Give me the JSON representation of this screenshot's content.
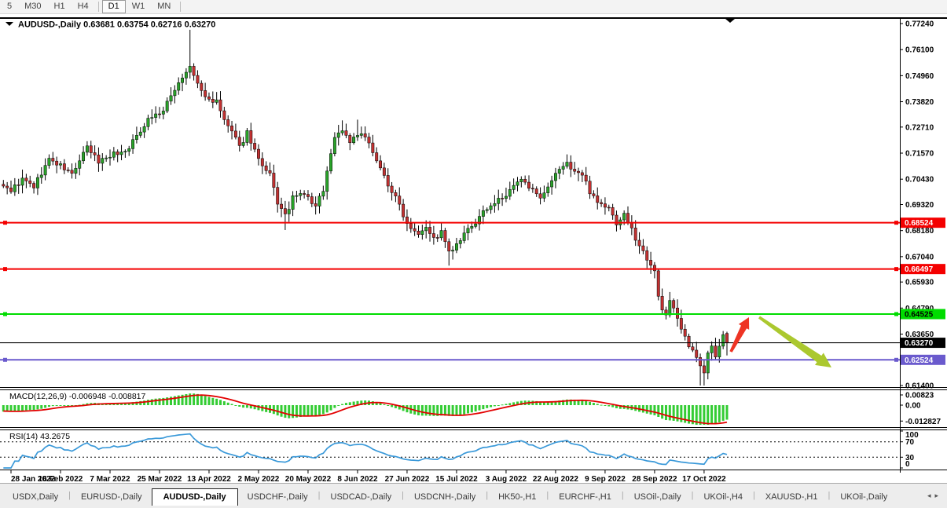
{
  "toolbar": {
    "items": [
      {
        "label": "5"
      },
      {
        "label": "M30"
      },
      {
        "label": "H1"
      },
      {
        "label": "H4"
      },
      {
        "sep": true
      },
      {
        "label": "D1",
        "active": true
      },
      {
        "label": "W1"
      },
      {
        "label": "MN"
      },
      {
        "sep": true
      }
    ]
  },
  "chart_data": {
    "type": "candlestick",
    "symbol": "AUDUSD-,Daily",
    "title": "AUDUSD-,Daily  0.63681 0.63754 0.62716 0.63270",
    "ohlc": {
      "open": "0.63681",
      "high": "0.63754",
      "low": "0.62716",
      "close": "0.63270"
    },
    "last_candle": {
      "o": 0.63681,
      "h": 0.63754,
      "l": 0.62716,
      "c": 0.6327
    },
    "bars": 189,
    "bars_per_label": 13,
    "x_labels": [
      "28 Jan 2022",
      "16 Feb 2022",
      "7 Mar 2022",
      "25 Mar 2022",
      "13 Apr 2022",
      "2 May 2022",
      "20 May 2022",
      "8 Jun 2022",
      "27 Jun 2022",
      "15 Jul 2022",
      "3 Aug 2022",
      "22 Aug 2022",
      "9 Sep 2022",
      "28 Sep 2022",
      "17 Oct 2022"
    ],
    "y_ticks": [
      "0.77240",
      "0.76100",
      "0.74960",
      "0.73820",
      "0.72710",
      "0.71570",
      "0.70430",
      "0.69320",
      "0.68180",
      "0.67040",
      "0.65930",
      "0.64790",
      "0.63650",
      "0.61400"
    ],
    "y_range": {
      "top": 0.7724,
      "bottom": 0.614
    },
    "close_anchors": [
      [
        -30,
        0.727
      ],
      [
        -20,
        0.718
      ],
      [
        -10,
        0.7075
      ],
      [
        -1,
        0.7005
      ],
      [
        0,
        0.6995
      ],
      [
        3,
        0.704
      ],
      [
        6,
        0.701
      ],
      [
        10,
        0.713
      ],
      [
        13,
        0.71
      ],
      [
        16,
        0.7065
      ],
      [
        20,
        0.718
      ],
      [
        23,
        0.712
      ],
      [
        26,
        0.715
      ],
      [
        30,
        0.7165
      ],
      [
        33,
        0.723
      ],
      [
        36,
        0.731
      ],
      [
        40,
        0.734
      ],
      [
        43,
        0.744
      ],
      [
        45,
        0.749
      ],
      [
        47,
        0.753
      ],
      [
        49,
        0.746
      ],
      [
        51,
        0.74
      ],
      [
        54,
        0.738
      ],
      [
        56,
        0.73
      ],
      [
        58,
        0.725
      ],
      [
        60,
        0.718
      ],
      [
        62,
        0.725
      ],
      [
        64,
        0.717
      ],
      [
        66,
        0.709
      ],
      [
        68,
        0.706
      ],
      [
        70,
        0.694
      ],
      [
        72,
        0.688
      ],
      [
        74,
        0.696
      ],
      [
        77,
        0.698
      ],
      [
        80,
        0.692
      ],
      [
        82,
        0.7
      ],
      [
        85,
        0.723
      ],
      [
        87,
        0.726
      ],
      [
        89,
        0.721
      ],
      [
        92,
        0.724
      ],
      [
        95,
        0.717
      ],
      [
        97,
        0.709
      ],
      [
        99,
        0.702
      ],
      [
        102,
        0.693
      ],
      [
        104,
        0.685
      ],
      [
        107,
        0.681
      ],
      [
        109,
        0.684
      ],
      [
        111,
        0.678
      ],
      [
        113,
        0.681
      ],
      [
        115,
        0.672
      ],
      [
        117,
        0.675
      ],
      [
        120,
        0.682
      ],
      [
        123,
        0.687
      ],
      [
        125,
        0.692
      ],
      [
        128,
        0.695
      ],
      [
        130,
        0.697
      ],
      [
        133,
        0.703
      ],
      [
        135,
        0.704
      ],
      [
        137,
        0.699
      ],
      [
        139,
        0.695
      ],
      [
        141,
        0.7
      ],
      [
        144,
        0.709
      ],
      [
        146,
        0.711
      ],
      [
        148,
        0.708
      ],
      [
        150,
        0.706
      ],
      [
        152,
        0.699
      ],
      [
        155,
        0.693
      ],
      [
        157,
        0.6915
      ],
      [
        159,
        0.685
      ],
      [
        161,
        0.689
      ],
      [
        163,
        0.682
      ],
      [
        165,
        0.675
      ],
      [
        167,
        0.67
      ],
      [
        169,
        0.665
      ],
      [
        170,
        0.653
      ],
      [
        171,
        0.646
      ],
      [
        172,
        0.645
      ],
      [
        173,
        0.652
      ],
      [
        175,
        0.644
      ],
      [
        176,
        0.638
      ],
      [
        178,
        0.631
      ],
      [
        180,
        0.626
      ],
      [
        181,
        0.6235
      ],
      [
        182,
        0.6205
      ],
      [
        183,
        0.629
      ],
      [
        184,
        0.631
      ],
      [
        185,
        0.626
      ],
      [
        186,
        0.631
      ],
      [
        187,
        0.6365
      ],
      [
        188,
        0.6327
      ]
    ],
    "wick_boosts": {
      "high": {
        "47": 0.014,
        "87": 0.003,
        "91": 0.004
      },
      "low": {
        "72": 0.005,
        "115": 0.0045,
        "181": 0.0065,
        "182": 0.004
      }
    },
    "colors": {
      "up": "#29A329",
      "down": "#C23131",
      "wick": "#000000",
      "background": "#ffffff",
      "border": "#000000"
    },
    "hlines": [
      {
        "price": 0.68524,
        "label": "0.68524",
        "color": "#F40000",
        "text_color": "#ffffff",
        "handles": true
      },
      {
        "price": 0.66497,
        "label": "0.66497",
        "color": "#F40000",
        "text_color": "#ffffff",
        "handles": true
      },
      {
        "price": 0.64525,
        "label": "0.64525",
        "color": "#00DC00",
        "text_color": "#000000",
        "handles": true
      },
      {
        "price": 0.6327,
        "label": "0.63270",
        "color": "#000000",
        "text_color": "#ffffff",
        "handles": false,
        "current": true
      },
      {
        "price": 0.62524,
        "label": "0.62524",
        "color": "#6A5ACD",
        "text_color": "#ffffff",
        "handles": true
      }
    ],
    "indicators": {
      "macd": {
        "label": "MACD(12,26,9)",
        "values": "-0.006948 -0.008817",
        "params": [
          12,
          26,
          9
        ],
        "axis_ticks": [
          "0.00823",
          "0.00",
          "-0.012827"
        ],
        "histogram_color": "#33CC33",
        "signal_color": "#E30000"
      },
      "rsi": {
        "label": "RSI(14)",
        "value": "43.2675",
        "period": 14,
        "axis_ticks": [
          {
            "v": 100,
            "label": "100"
          },
          {
            "v": 70,
            "label": "70"
          },
          {
            "v": 30,
            "label": "30"
          },
          {
            "v": 0,
            "label": "0"
          }
        ],
        "levels": [
          70,
          30
        ],
        "line_color": "#3A99D9"
      }
    },
    "annotations": [
      {
        "type": "arrow-up",
        "color": "#EE3424",
        "from": [
          930,
          430
        ],
        "to": [
          953,
          386
        ]
      },
      {
        "type": "arrow-down",
        "color": "#ABC82F",
        "from": [
          966,
          386
        ],
        "to": [
          1058,
          450
        ]
      }
    ]
  },
  "tabs": {
    "items": [
      {
        "label": "USDX,Daily"
      },
      {
        "label": "EURUSD-,Daily"
      },
      {
        "label": "AUDUSD-,Daily",
        "active": true
      },
      {
        "label": "USDCHF-,Daily"
      },
      {
        "label": "USDCAD-,Daily"
      },
      {
        "label": "USDCNH-,Daily"
      },
      {
        "label": "HK50-,H1"
      },
      {
        "label": "EURCHF-,H1"
      },
      {
        "label": "USOil-,Daily"
      },
      {
        "label": "UKOil-,H4"
      },
      {
        "label": "XAUUSD-,H1"
      },
      {
        "label": "UKOil-,Daily"
      }
    ],
    "nav_prev": "◂",
    "nav_next": "▸"
  }
}
